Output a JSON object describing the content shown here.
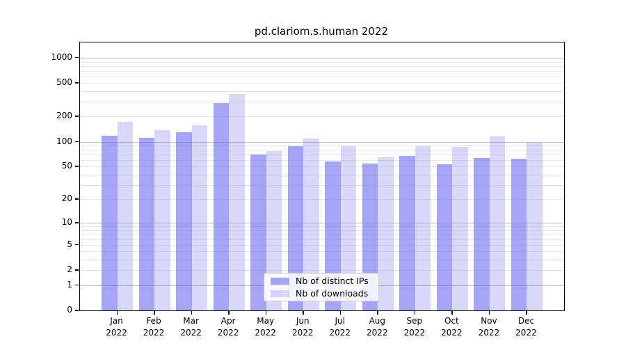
{
  "chart_data": {
    "type": "bar",
    "title": "pd.clariom.s.human 2022",
    "x_categories": [
      "Jan",
      "Feb",
      "Mar",
      "Apr",
      "May",
      "Jun",
      "Jul",
      "Aug",
      "Sep",
      "Oct",
      "Nov",
      "Dec"
    ],
    "x_year": "2022",
    "series": [
      {
        "name": "Nb of distinct IPs",
        "color": "rgba(100,100,240,0.58)",
        "values": [
          118,
          112,
          130,
          290,
          70,
          88,
          58,
          55,
          67,
          53,
          64,
          62
        ]
      },
      {
        "name": "Nb of downloads",
        "color": "rgba(100,100,240,0.25)",
        "values": [
          173,
          137,
          158,
          372,
          77,
          110,
          89,
          65,
          89,
          86,
          116,
          98
        ]
      }
    ],
    "y_scale": "log1p",
    "y_ticks": [
      0,
      1,
      2,
      5,
      10,
      20,
      50,
      100,
      200,
      500,
      1000
    ],
    "y_max": 1520,
    "grid_minor": [
      2,
      3,
      4,
      5,
      6,
      7,
      8,
      9,
      20,
      30,
      40,
      50,
      60,
      70,
      80,
      90,
      200,
      300,
      400,
      500,
      600,
      700,
      800,
      900
    ],
    "grid_major": [
      1,
      10,
      100,
      1000
    ],
    "legend_position": "inside-bottom-center",
    "colors": {
      "background": "#ffffff",
      "axis": "#000000",
      "grid_minor": "#e7e7e7",
      "grid_major": "#bdbdbd",
      "bar_ips_rendered": "#a8a8f6",
      "bar_downloads_rendered": "#d8d8f9"
    }
  }
}
